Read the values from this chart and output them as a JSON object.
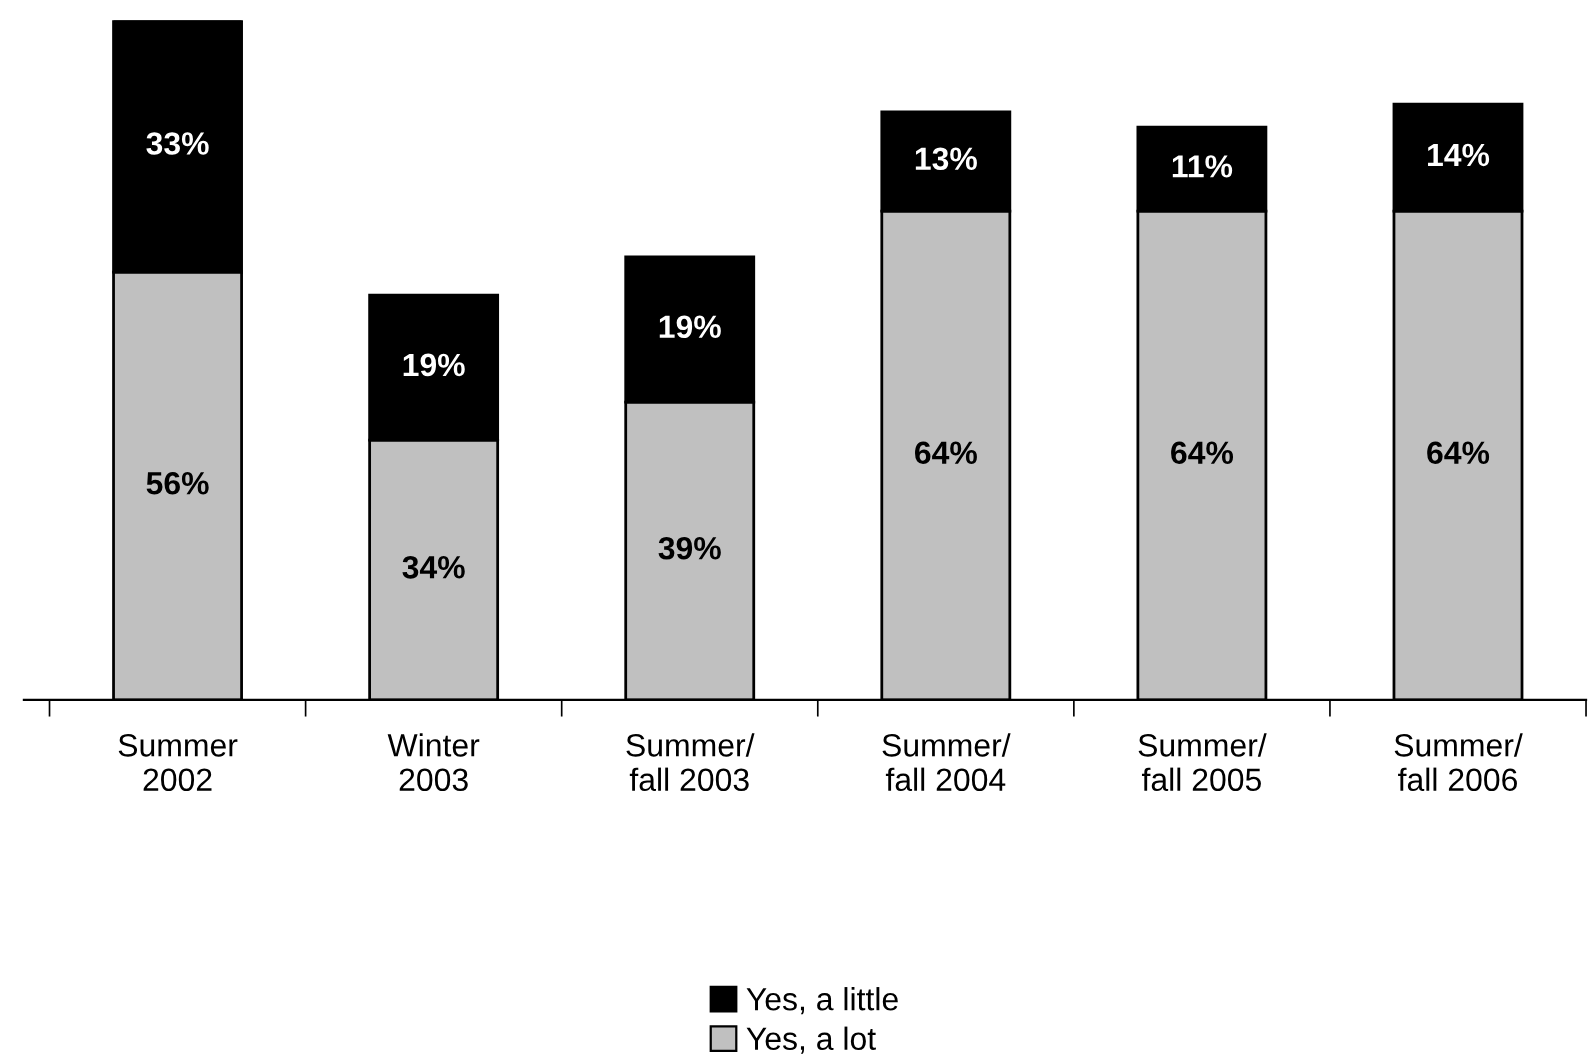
{
  "chart_data": {
    "type": "bar",
    "stacked": true,
    "categories": [
      "Summer\n2002",
      "Winter\n2003",
      "Summer/\nfall 2003",
      "Summer/\nfall 2004",
      "Summer/\nfall 2005",
      "Summer/\nfall 2006"
    ],
    "series": [
      {
        "name": "Yes, a lot",
        "color": "#c0c0c0",
        "values": [
          56,
          34,
          39,
          64,
          64,
          64
        ],
        "value_labels": [
          "56%",
          "34%",
          "39%",
          "64%",
          "64%",
          "64%"
        ]
      },
      {
        "name": "Yes, a little",
        "color": "#000000",
        "values": [
          33,
          19,
          19,
          13,
          11,
          14
        ],
        "value_labels": [
          "33%",
          "19%",
          "19%",
          "13%",
          "11%",
          "14%"
        ]
      }
    ],
    "legend": "bottom",
    "grid": false
  }
}
